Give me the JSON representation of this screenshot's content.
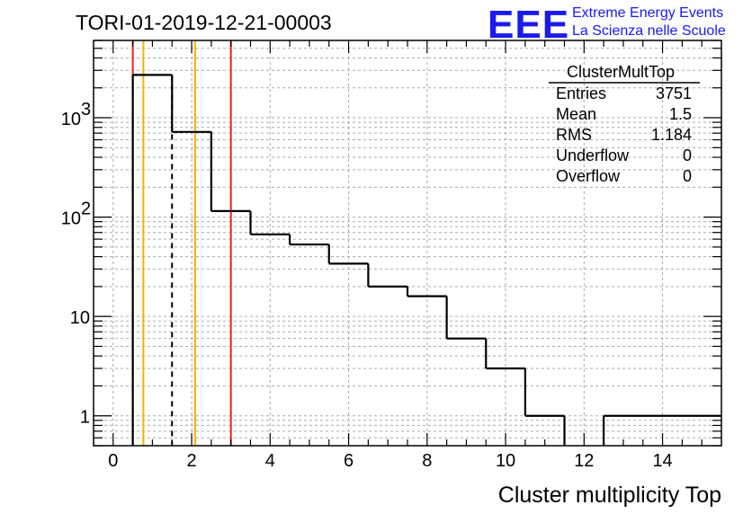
{
  "chart_data": {
    "type": "histogram",
    "title": "TORI-01-2019-12-21-00003",
    "xlabel": "Cluster multiplicity Top",
    "ylabel": "",
    "xlim": [
      -0.5,
      15.5
    ],
    "ylim": [
      0.5,
      6000
    ],
    "yscale": "log",
    "grid": true,
    "bins": [
      {
        "lo": 0.5,
        "hi": 1.5,
        "value": 2700
      },
      {
        "lo": 1.5,
        "hi": 2.5,
        "value": 720
      },
      {
        "lo": 2.5,
        "hi": 3.5,
        "value": 115
      },
      {
        "lo": 3.5,
        "hi": 4.5,
        "value": 67
      },
      {
        "lo": 4.5,
        "hi": 5.5,
        "value": 53
      },
      {
        "lo": 5.5,
        "hi": 6.5,
        "value": 34
      },
      {
        "lo": 6.5,
        "hi": 7.5,
        "value": 20
      },
      {
        "lo": 7.5,
        "hi": 8.5,
        "value": 16
      },
      {
        "lo": 8.5,
        "hi": 9.5,
        "value": 6
      },
      {
        "lo": 9.5,
        "hi": 10.5,
        "value": 3
      },
      {
        "lo": 10.5,
        "hi": 11.5,
        "value": 1
      },
      {
        "lo": 11.5,
        "hi": 12.5,
        "value": 0
      },
      {
        "lo": 12.5,
        "hi": 15.5,
        "value": 1
      }
    ],
    "x_ticks": [
      {
        "v": 0,
        "label": "0"
      },
      {
        "v": 2,
        "label": "2"
      },
      {
        "v": 4,
        "label": "4"
      },
      {
        "v": 6,
        "label": "6"
      },
      {
        "v": 8,
        "label": "8"
      },
      {
        "v": 10,
        "label": "10"
      },
      {
        "v": 12,
        "label": "12"
      },
      {
        "v": 14,
        "label": "14"
      }
    ],
    "y_ticks": [
      {
        "v": 1,
        "label": "1"
      },
      {
        "v": 10,
        "label": "10"
      },
      {
        "v": 100,
        "label": "10",
        "sup": "2"
      },
      {
        "v": 1000,
        "label": "10",
        "sup": "3"
      }
    ],
    "vertical_lines": [
      {
        "x": 0.5,
        "color": "#ee2222",
        "style": "solid",
        "y_top": 6000
      },
      {
        "x": 0.77,
        "color": "#f5b400",
        "style": "solid",
        "y_top": 6000
      },
      {
        "x": 1.5,
        "color": "#000000",
        "style": "dashed",
        "y_top": 2700
      },
      {
        "x": 2.09,
        "color": "#f5b400",
        "style": "solid",
        "y_top": 6000
      },
      {
        "x": 3.0,
        "color": "#ee2222",
        "style": "solid",
        "y_top": 6000
      }
    ],
    "stats_box": {
      "title": "ClusterMultTop",
      "rows": [
        {
          "label": "Entries",
          "value": "3751"
        },
        {
          "label": "Mean",
          "value": "1.5"
        },
        {
          "label": "RMS",
          "value": "1.184"
        },
        {
          "label": "Underflow",
          "value": "0"
        },
        {
          "label": "Overflow",
          "value": "0"
        }
      ]
    }
  },
  "logo": {
    "mark": "EEE",
    "line1": "Extreme Energy Events",
    "line2": "La Scienza nelle Scuole",
    "color": "#1a1aee"
  }
}
